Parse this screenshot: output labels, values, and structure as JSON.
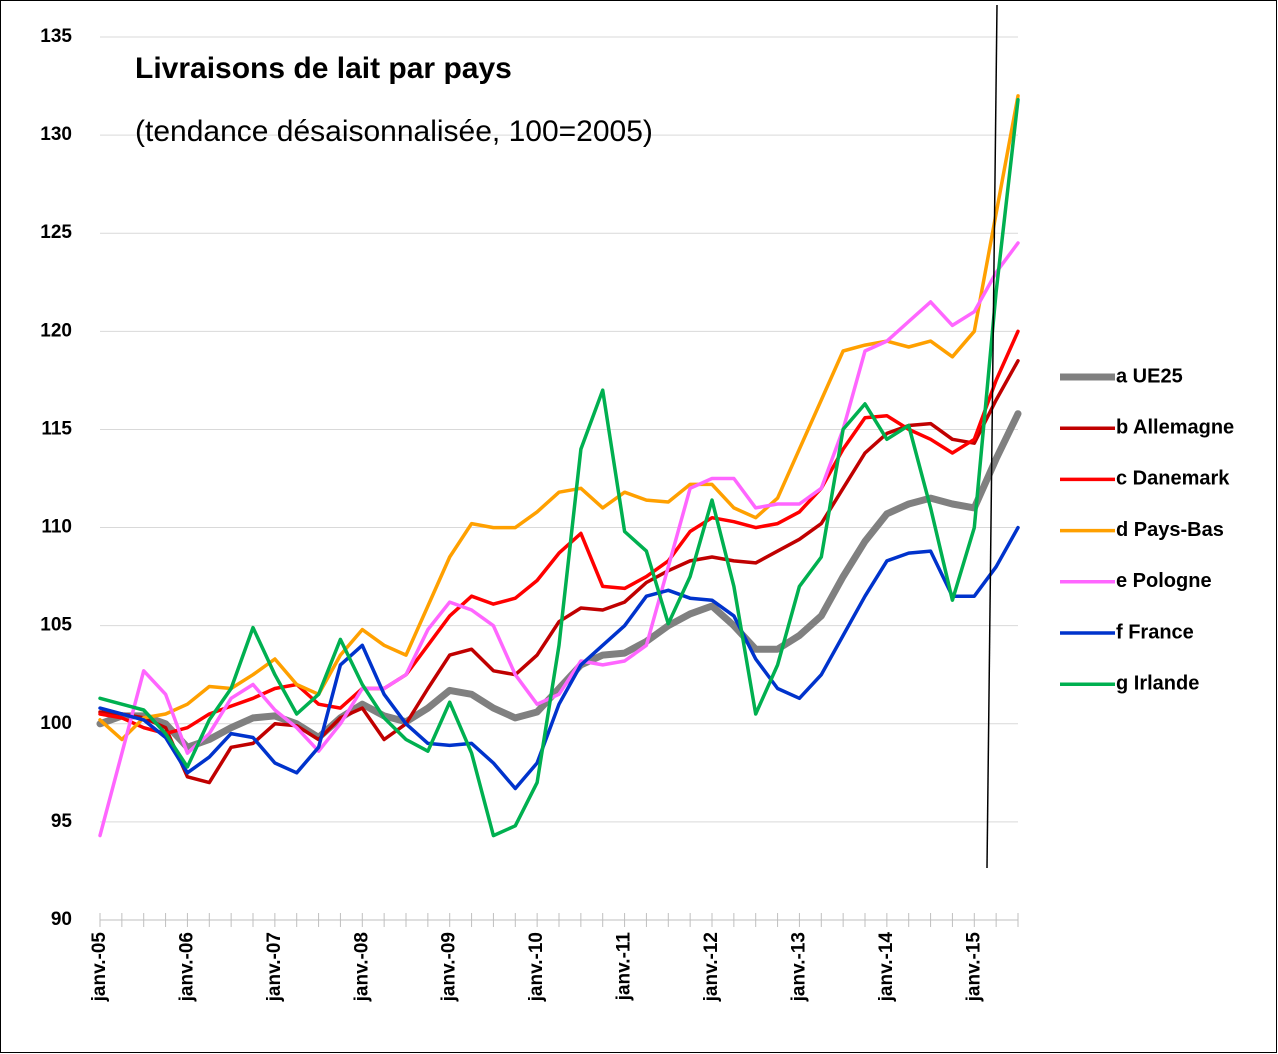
{
  "chart_data": {
    "type": "line",
    "title": "Livraisons de lait par pays",
    "subtitle": "(tendance désaisonnalisée, 100=2005)",
    "categories": [
      "janv.-05",
      null,
      null,
      null,
      "janv.-06",
      null,
      null,
      null,
      "janv.-07",
      null,
      null,
      null,
      "janv.-08",
      null,
      null,
      null,
      "janv.-09",
      null,
      null,
      null,
      "janv.-10",
      null,
      null,
      null,
      "janv.-11",
      null,
      null,
      null,
      "janv.-12",
      null,
      null,
      null,
      "janv.-13",
      null,
      null,
      null,
      "janv.-14",
      null,
      null,
      null,
      "janv.-15",
      null,
      null
    ],
    "ylim": [
      90,
      135
    ],
    "yticks": [
      90,
      95,
      100,
      105,
      110,
      115,
      120,
      125,
      130,
      135
    ],
    "grid": true,
    "legend": "right",
    "series": [
      {
        "name": "a UE25",
        "color": "#808080",
        "values": [
          100,
          100.4,
          100.4,
          100,
          98.8,
          99.2,
          99.8,
          100.3,
          100.4,
          100,
          99.3,
          100.3,
          101,
          100.4,
          100.1,
          100.8,
          101.7,
          101.5,
          100.8,
          100.3,
          100.6,
          101.8,
          103,
          103.5,
          103.6,
          104.2,
          105,
          105.6,
          106,
          105,
          103.8,
          103.8,
          104.5,
          105.5,
          107.5,
          109.3,
          110.7,
          111.2,
          111.5,
          111.2,
          111,
          113.5,
          115.8
        ]
      },
      {
        "name": "b Allemagne",
        "color": "#c00000",
        "values": [
          100.6,
          100.5,
          100.3,
          99.8,
          97.3,
          97,
          98.8,
          99,
          100,
          99.9,
          99.2,
          100.3,
          100.8,
          99.2,
          100,
          101.8,
          103.5,
          103.8,
          102.7,
          102.5,
          103.5,
          105.2,
          105.9,
          105.8,
          106.2,
          107.2,
          107.8,
          108.3,
          108.5,
          108.3,
          108.2,
          108.8,
          109.4,
          110.2,
          112,
          113.8,
          114.8,
          115.2,
          115.3,
          114.5,
          114.3,
          116.5,
          118.5
        ]
      },
      {
        "name": "c Danemark",
        "color": "#ff0000",
        "values": [
          100.5,
          100.3,
          99.8,
          99.5,
          99.8,
          100.5,
          100.9,
          101.3,
          101.8,
          102,
          101,
          100.8,
          101.8,
          101.8,
          102.5,
          104,
          105.5,
          106.5,
          106.1,
          106.4,
          107.3,
          108.7,
          109.7,
          107,
          106.9,
          107.5,
          108.3,
          109.8,
          110.5,
          110.3,
          110,
          110.2,
          110.8,
          112,
          114,
          115.6,
          115.7,
          115,
          114.5,
          113.8,
          114.5,
          117.5,
          120
        ]
      },
      {
        "name": "d Pays-Bas",
        "color": "#ffa000",
        "values": [
          100.2,
          99.2,
          100.3,
          100.5,
          101,
          101.9,
          101.8,
          102.5,
          103.3,
          102,
          101.5,
          103.5,
          104.8,
          104,
          103.5,
          106,
          108.5,
          110.2,
          110,
          110,
          110.8,
          111.8,
          112,
          111,
          111.8,
          111.4,
          111.3,
          112.2,
          112.2,
          111,
          110.5,
          111.5,
          114,
          116.5,
          119,
          119.3,
          119.5,
          119.2,
          119.5,
          118.7,
          120,
          126,
          132
        ]
      },
      {
        "name": "e Pologne",
        "color": "#ff66ff",
        "values": [
          94.3,
          98.5,
          102.7,
          101.5,
          98.5,
          99.5,
          101.3,
          102,
          100.7,
          99.8,
          98.6,
          100,
          101.8,
          101.8,
          102.5,
          104.8,
          106.2,
          105.8,
          105,
          102.5,
          101,
          101.5,
          103.2,
          103,
          103.2,
          104,
          108,
          112,
          112.5,
          112.5,
          111,
          111.2,
          111.2,
          112,
          115,
          119,
          119.5,
          120.5,
          121.5,
          120.3,
          121,
          123,
          124.5
        ]
      },
      {
        "name": "f France",
        "color": "#0033cc",
        "values": [
          100.8,
          100.5,
          100.2,
          99.3,
          97.5,
          98.3,
          99.5,
          99.3,
          98,
          97.5,
          98.8,
          103,
          104,
          101.5,
          100,
          99,
          98.9,
          99,
          98,
          96.7,
          98,
          101,
          103,
          104,
          105,
          106.5,
          106.8,
          106.4,
          106.3,
          105.5,
          103.3,
          101.8,
          101.3,
          102.5,
          104.5,
          106.5,
          108.3,
          108.7,
          108.8,
          106.5,
          106.5,
          108,
          110
        ]
      },
      {
        "name": "g Irlande",
        "color": "#00b050",
        "values": [
          101.3,
          101,
          100.7,
          99.5,
          97.8,
          100.2,
          101.8,
          104.9,
          102.5,
          100.5,
          101.5,
          104.3,
          102,
          100.3,
          99.2,
          98.6,
          101.1,
          98.5,
          94.3,
          94.8,
          97,
          104,
          114,
          117,
          109.8,
          108.8,
          105.1,
          107.5,
          111.4,
          107,
          100.5,
          103,
          107,
          108.5,
          115,
          116.3,
          114.5,
          115.2,
          111,
          106.3,
          110,
          122,
          131.8
        ]
      }
    ]
  }
}
